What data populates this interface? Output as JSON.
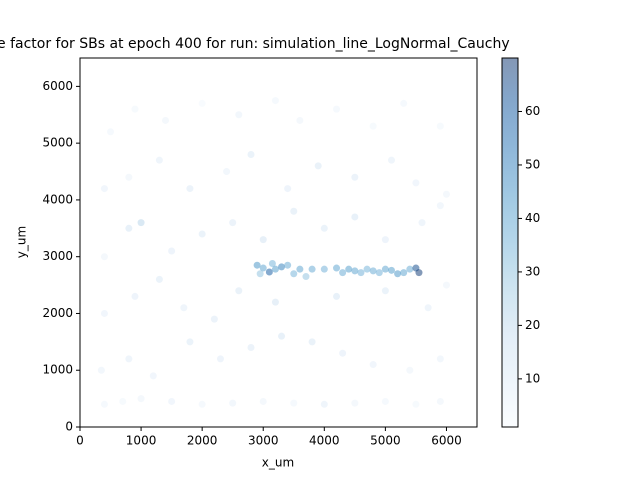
{
  "chart_data": {
    "type": "scatter",
    "title": "e factor for SBs at epoch 400 for run: simulation_line_LogNormal_Cauchy",
    "x_label": "x_um",
    "y_label": "y_um",
    "xlim": [
      0,
      6500
    ],
    "ylim": [
      0,
      6500
    ],
    "xticks": [
      0,
      1000,
      2000,
      3000,
      4000,
      5000,
      6000
    ],
    "yticks": [
      0,
      1000,
      2000,
      3000,
      4000,
      5000,
      6000
    ],
    "clim": [
      1,
      70
    ],
    "cticks": [
      10,
      20,
      30,
      40,
      50,
      60
    ],
    "colormap": [
      "#f7fbff",
      "#deebf7",
      "#c6dbef",
      "#9ecae1",
      "#6baed6",
      "#4292c6",
      "#2171b5",
      "#08519c",
      "#08306b"
    ],
    "alpha": 0.5,
    "x": [
      400,
      700,
      1000,
      1500,
      2000,
      2500,
      3000,
      3500,
      4000,
      4500,
      5000,
      5500,
      5900,
      350,
      800,
      1200,
      1800,
      2300,
      2800,
      3300,
      3800,
      4300,
      4800,
      5400,
      5900,
      400,
      900,
      1300,
      1700,
      2200,
      2600,
      3200,
      4200,
      5000,
      5700,
      6000,
      400,
      800,
      1000,
      1500,
      2000,
      2500,
      3000,
      3500,
      4000,
      4500,
      5000,
      5600,
      5900,
      400,
      800,
      1300,
      1800,
      2400,
      2800,
      3400,
      3900,
      4500,
      5100,
      5500,
      6000,
      500,
      900,
      1400,
      2000,
      2600,
      3200,
      3600,
      4200,
      4800,
      5300,
      5900,
      2900,
      3000,
      3100,
      3200,
      3300,
      3400,
      3500,
      3600,
      3700,
      3800,
      4000,
      4200,
      4300,
      4400,
      4500,
      4600,
      4700,
      4800,
      4900,
      5000,
      5100,
      5200,
      5300,
      5400,
      5500,
      5550,
      3150,
      2950
    ],
    "y": [
      400,
      450,
      500,
      450,
      400,
      420,
      450,
      420,
      400,
      420,
      450,
      400,
      450,
      1000,
      1200,
      900,
      1500,
      1200,
      1400,
      1600,
      1500,
      1300,
      1100,
      1000,
      1200,
      2000,
      2300,
      2600,
      2100,
      1900,
      2400,
      2200,
      2300,
      2400,
      2100,
      2500,
      3000,
      3500,
      3600,
      3100,
      3400,
      3600,
      3300,
      3800,
      3500,
      3700,
      3300,
      3600,
      3900,
      4200,
      4400,
      4700,
      4200,
      4500,
      4800,
      4200,
      4600,
      4400,
      4700,
      4300,
      4100,
      5200,
      5600,
      5400,
      5700,
      5500,
      5750,
      5400,
      5600,
      5300,
      5700,
      5300,
      2850,
      2800,
      2730,
      2780,
      2820,
      2850,
      2700,
      2780,
      2650,
      2780,
      2780,
      2800,
      2720,
      2780,
      2750,
      2720,
      2780,
      2750,
      2720,
      2780,
      2760,
      2700,
      2720,
      2780,
      2800,
      2720,
      2880,
      2700
    ],
    "values": [
      5,
      4,
      6,
      8,
      5,
      7,
      6,
      5,
      9,
      6,
      5,
      4,
      6,
      7,
      9,
      8,
      12,
      10,
      11,
      14,
      13,
      10,
      8,
      6,
      7,
      8,
      10,
      12,
      9,
      11,
      13,
      15,
      14,
      12,
      9,
      6,
      6,
      14,
      22,
      10,
      12,
      11,
      15,
      13,
      12,
      14,
      10,
      9,
      7,
      8,
      6,
      9,
      11,
      7,
      12,
      10,
      13,
      11,
      9,
      8,
      6,
      5,
      4,
      6,
      3,
      7,
      5,
      6,
      5,
      4,
      5,
      4,
      45,
      40,
      60,
      42,
      50,
      38,
      35,
      40,
      30,
      38,
      36,
      40,
      38,
      42,
      40,
      36,
      35,
      38,
      36,
      40,
      42,
      44,
      40,
      38,
      65,
      69,
      35,
      30
    ]
  }
}
